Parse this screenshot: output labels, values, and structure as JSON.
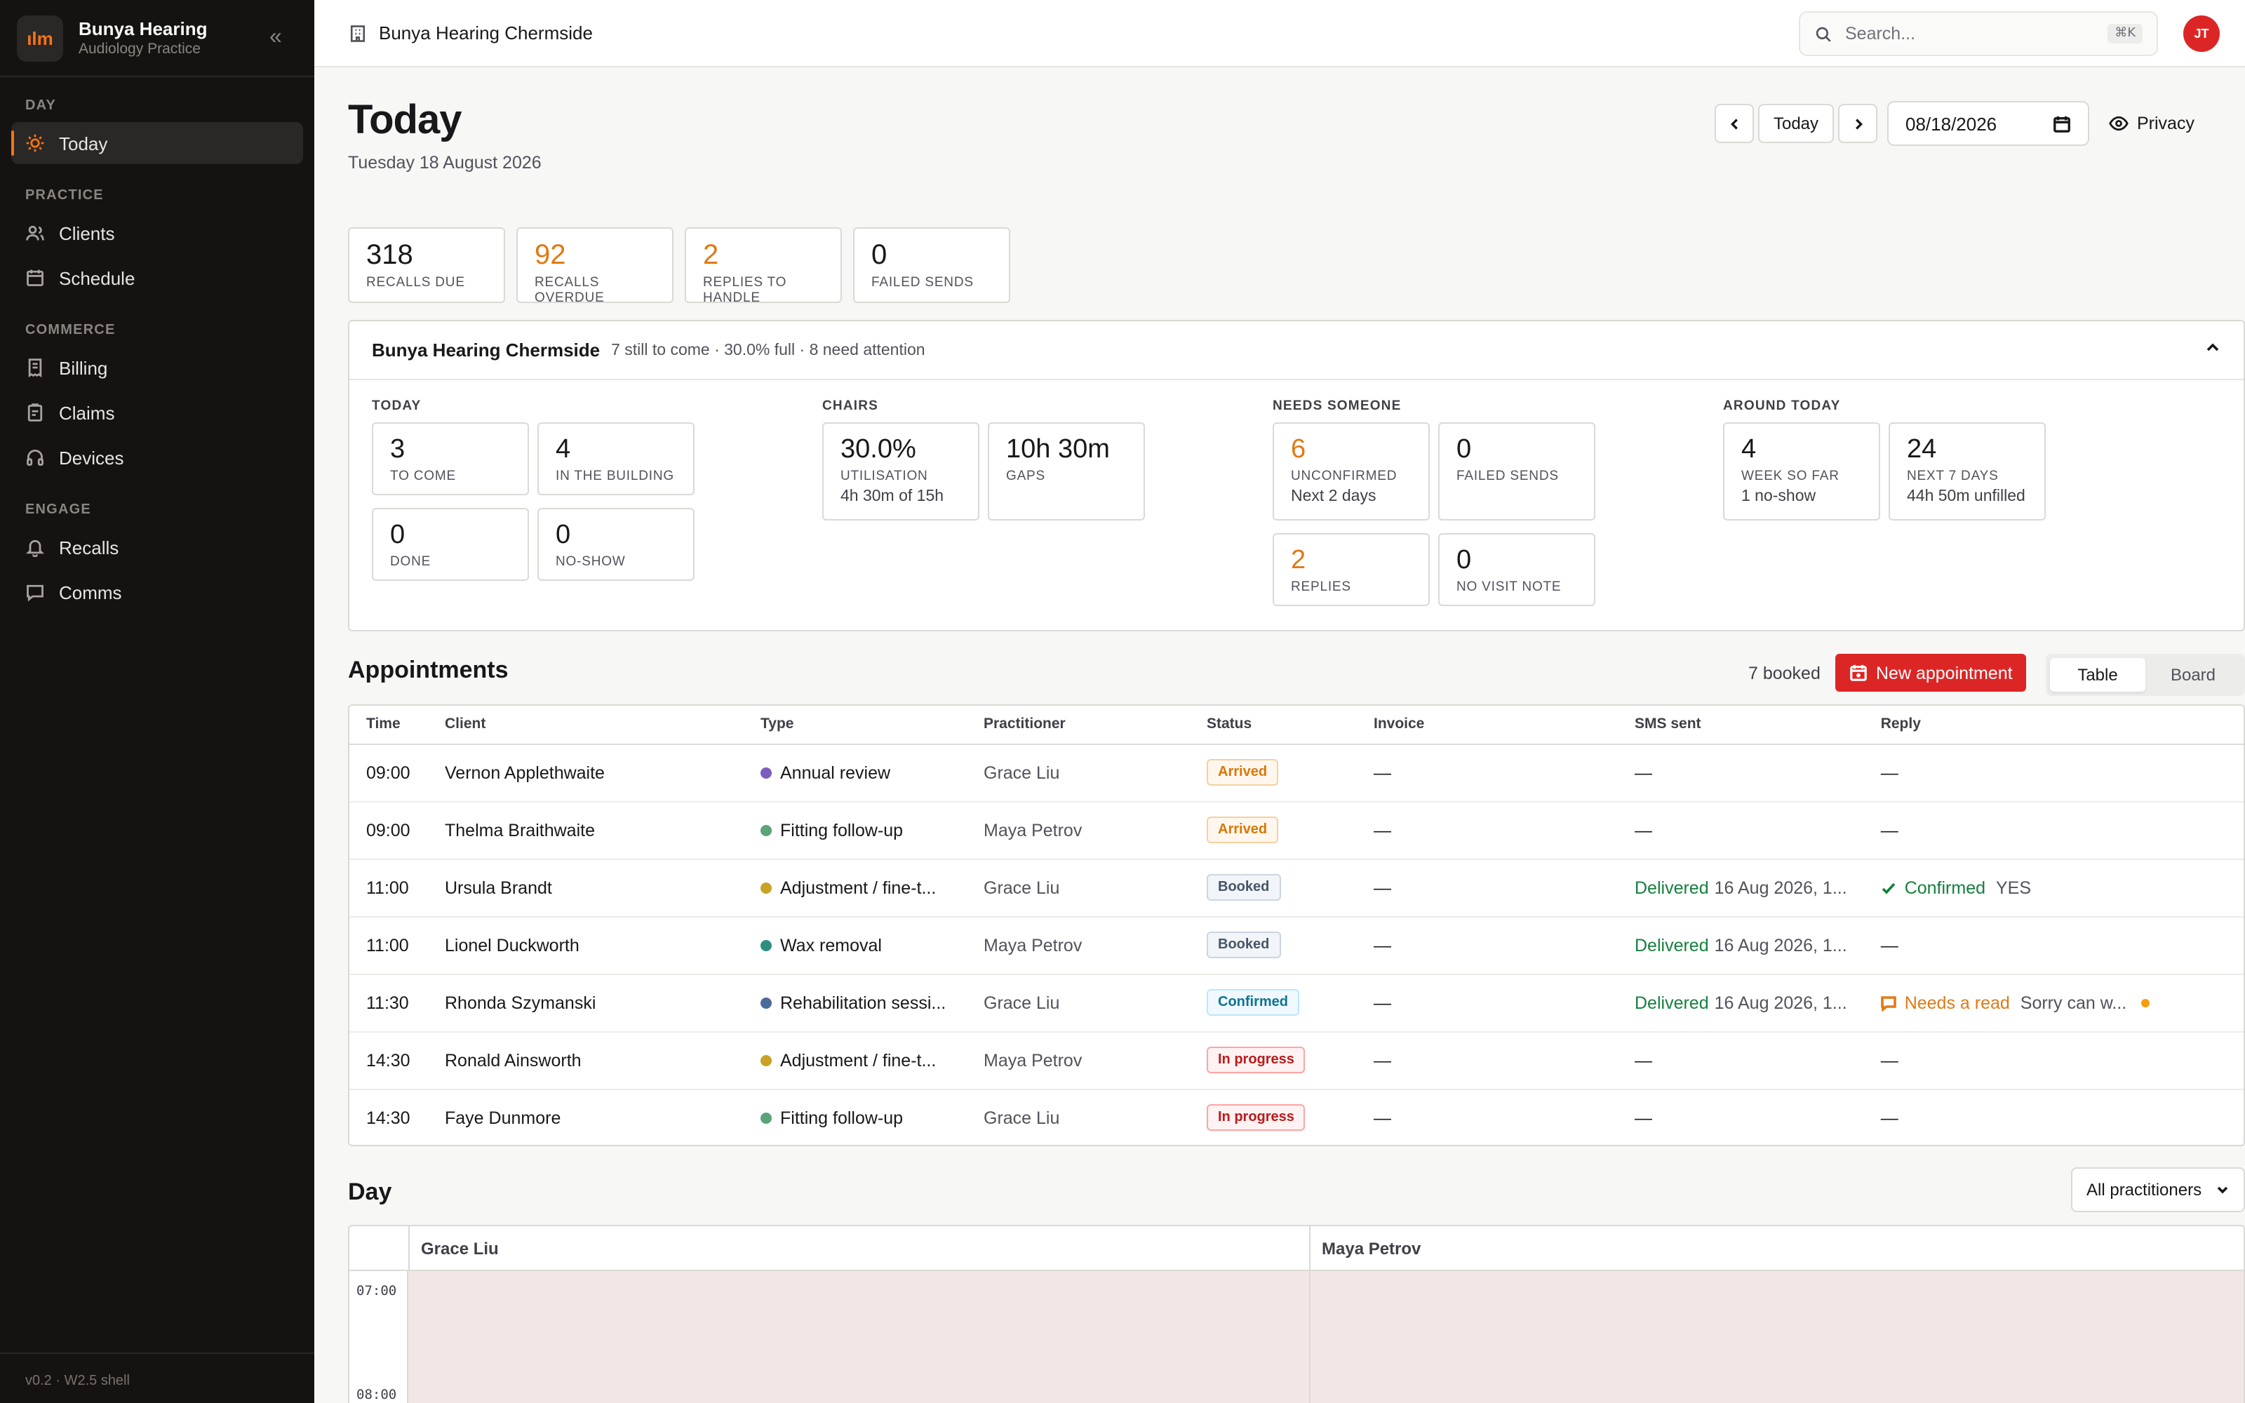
{
  "brand": {
    "logo": "ılm",
    "name": "Bunya Hearing",
    "subtitle": "Audiology Practice"
  },
  "sidebar": {
    "sections": [
      {
        "label": "DAY",
        "items": [
          {
            "label": "Today",
            "icon": "sun-icon",
            "active": true
          }
        ]
      },
      {
        "label": "PRACTICE",
        "items": [
          {
            "label": "Clients",
            "icon": "users-icon"
          },
          {
            "label": "Schedule",
            "icon": "calendar-icon"
          }
        ]
      },
      {
        "label": "COMMERCE",
        "items": [
          {
            "label": "Billing",
            "icon": "receipt-icon"
          },
          {
            "label": "Claims",
            "icon": "clipboard-icon"
          },
          {
            "label": "Devices",
            "icon": "headphones-icon"
          }
        ]
      },
      {
        "label": "ENGAGE",
        "items": [
          {
            "label": "Recalls",
            "icon": "bell-icon"
          },
          {
            "label": "Comms",
            "icon": "message-icon"
          }
        ]
      }
    ],
    "footer": "v0.2 · W2.5 shell"
  },
  "topbar": {
    "location": "Bunya Hearing Chermside",
    "search_placeholder": "Search...",
    "search_kbd": "⌘K",
    "avatar": "JT"
  },
  "header": {
    "title": "Today",
    "date_text": "Tuesday 18 August 2026",
    "today_button": "Today",
    "date_value": "08/18/2026",
    "privacy": "Privacy"
  },
  "kpis": [
    {
      "value": "318",
      "label": "RECALLS DUE",
      "warn": false
    },
    {
      "value": "92",
      "label": "RECALLS OVERDUE",
      "warn": true
    },
    {
      "value": "2",
      "label": "REPLIES TO HANDLE",
      "warn": true
    },
    {
      "value": "0",
      "label": "FAILED SENDS",
      "warn": false
    }
  ],
  "location_card": {
    "name": "Bunya Hearing Chermside",
    "meta": "7 still to come · 30.0% full · 8 need attention",
    "groups": {
      "today": {
        "label": "TODAY",
        "tiles": [
          {
            "value": "3",
            "label": "TO COME"
          },
          {
            "value": "4",
            "label": "IN THE BUILDING"
          },
          {
            "value": "0",
            "label": "DONE"
          },
          {
            "value": "0",
            "label": "NO-SHOW"
          }
        ]
      },
      "chairs": {
        "label": "CHAIRS",
        "tiles": [
          {
            "value": "30.0%",
            "label": "UTILISATION",
            "sub": "4h 30m of 15h"
          },
          {
            "value": "10h 30m",
            "label": "GAPS"
          }
        ]
      },
      "needs": {
        "label": "NEEDS SOMEONE",
        "tiles": [
          {
            "value": "6",
            "label": "UNCONFIRMED",
            "sub": "Next 2 days",
            "warn": true
          },
          {
            "value": "0",
            "label": "FAILED SENDS"
          },
          {
            "value": "2",
            "label": "REPLIES",
            "warn": true
          },
          {
            "value": "0",
            "label": "NO VISIT NOTE"
          }
        ]
      },
      "around": {
        "label": "AROUND TODAY",
        "tiles": [
          {
            "value": "4",
            "label": "WEEK SO FAR",
            "sub": "1 no-show"
          },
          {
            "value": "24",
            "label": "NEXT 7 DAYS",
            "sub": "44h 50m unfilled"
          }
        ]
      }
    }
  },
  "appointments": {
    "title": "Appointments",
    "booked": "7 booked",
    "new_button": "New appointment",
    "view_table": "Table",
    "view_board": "Board",
    "columns": [
      "Time",
      "Client",
      "Type",
      "Practitioner",
      "Status",
      "Invoice",
      "SMS sent",
      "Reply"
    ],
    "rows": [
      {
        "time": "09:00",
        "client": "Vernon Applethwaite",
        "type": "Annual review",
        "type_color": "#7c5cbf",
        "practitioner": "Grace Liu",
        "status": "Arrived",
        "status_kind": "arrived",
        "invoice": "—",
        "sms": "—",
        "sms_date": "",
        "reply_kind": "none",
        "reply": "—",
        "reply_text": ""
      },
      {
        "time": "09:00",
        "client": "Thelma Braithwaite",
        "type": "Fitting follow-up",
        "type_color": "#5ba37a",
        "practitioner": "Maya Petrov",
        "status": "Arrived",
        "status_kind": "arrived",
        "invoice": "—",
        "sms": "—",
        "sms_date": "",
        "reply_kind": "none",
        "reply": "—",
        "reply_text": ""
      },
      {
        "time": "11:00",
        "client": "Ursula Brandt",
        "type": "Adjustment / fine-t...",
        "type_color": "#c9a227",
        "practitioner": "Grace Liu",
        "status": "Booked",
        "status_kind": "booked",
        "invoice": "—",
        "sms": "Delivered",
        "sms_date": "16 Aug 2026, 1...",
        "reply_kind": "confirmed",
        "reply": "Confirmed",
        "reply_text": "YES"
      },
      {
        "time": "11:00",
        "client": "Lionel Duckworth",
        "type": "Wax removal",
        "type_color": "#2f8f7f",
        "practitioner": "Maya Petrov",
        "status": "Booked",
        "status_kind": "booked",
        "invoice": "—",
        "sms": "Delivered",
        "sms_date": "16 Aug 2026, 1...",
        "reply_kind": "none",
        "reply": "—",
        "reply_text": ""
      },
      {
        "time": "11:30",
        "client": "Rhonda Szymanski",
        "type": "Rehabilitation sessi...",
        "type_color": "#4a6a9a",
        "practitioner": "Grace Liu",
        "status": "Confirmed",
        "status_kind": "confirmed",
        "invoice": "—",
        "sms": "Delivered",
        "sms_date": "16 Aug 2026, 1...",
        "reply_kind": "needs",
        "reply": "Needs a read",
        "reply_text": "Sorry can w..."
      },
      {
        "time": "14:30",
        "client": "Ronald Ainsworth",
        "type": "Adjustment / fine-t...",
        "type_color": "#c9a227",
        "practitioner": "Maya Petrov",
        "status": "In progress",
        "status_kind": "progress",
        "invoice": "—",
        "sms": "—",
        "sms_date": "",
        "reply_kind": "none",
        "reply": "—",
        "reply_text": ""
      },
      {
        "time": "14:30",
        "client": "Faye Dunmore",
        "type": "Fitting follow-up",
        "type_color": "#5ba37a",
        "practitioner": "Grace Liu",
        "status": "In progress",
        "status_kind": "progress",
        "invoice": "—",
        "sms": "—",
        "sms_date": "",
        "reply_kind": "none",
        "reply": "—",
        "reply_text": ""
      }
    ]
  },
  "day": {
    "title": "Day",
    "filter": "All practitioners",
    "columns": [
      "Grace Liu",
      "Maya Petrov"
    ],
    "times": [
      "07:00",
      "08:00"
    ]
  },
  "colors": {
    "accent": "#f97316",
    "brand_red": "#dc2626",
    "warn": "#e07a14",
    "delivered": "#15803d"
  }
}
